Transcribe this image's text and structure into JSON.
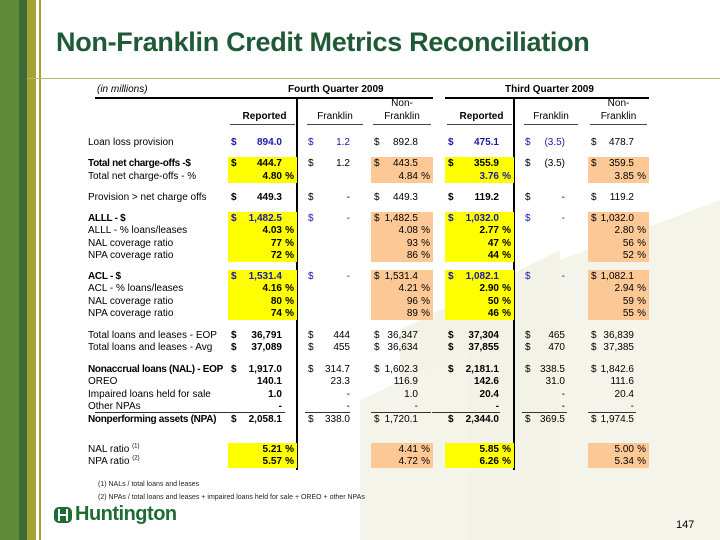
{
  "title": "Non-Franklin Credit Metrics Reconciliation",
  "units_note": "(in millions)",
  "periods": [
    "Fourth Quarter 2009",
    "Third Quarter 2009"
  ],
  "column_headers": {
    "reported": "Reported",
    "franklin": "Franklin",
    "non_top": "Non-",
    "non_bottom": "Franklin"
  },
  "colors": {
    "title": "#1f5a36",
    "reported_highlight": "#ffff00",
    "non_franklin_highlight": "#fcc896",
    "accent_blue": "#1a1aa8"
  },
  "rows": [
    {
      "label": "Loan loss provision",
      "cells": [
        [
          "$",
          "894.0",
          "",
          "b"
        ],
        [
          "$",
          "1.2",
          "",
          "b"
        ],
        [
          "$",
          "892.8",
          ""
        ],
        [
          "$",
          "475.1",
          "",
          "b"
        ],
        [
          "$",
          "(3.5)",
          "",
          "b"
        ],
        [
          "$",
          "478.7",
          ""
        ]
      ]
    },
    {
      "label": "Total net charge-offs -$",
      "bold": true,
      "hl": true,
      "cells": [
        [
          "$",
          "444.7",
          ""
        ],
        [
          "$",
          "1.2",
          ""
        ],
        [
          "$",
          "443.5",
          ""
        ],
        [
          "$",
          "355.9",
          ""
        ],
        [
          "$",
          "(3.5)",
          ""
        ],
        [
          "$",
          "359.5",
          ""
        ]
      ]
    },
    {
      "label": "Total net charge-offs - %",
      "hl": true,
      "cells": [
        [
          "",
          "4.80",
          "%"
        ],
        null,
        [
          "",
          "4.84",
          "%"
        ],
        [
          "",
          "3.76",
          "%",
          "b"
        ],
        null,
        [
          "",
          "3.85",
          "%"
        ]
      ]
    },
    {
      "label": "Provision > net charge offs",
      "cells": [
        [
          "$",
          "449.3",
          ""
        ],
        [
          "$",
          "-",
          ""
        ],
        [
          "$",
          "449.3",
          ""
        ],
        [
          "$",
          "119.2",
          ""
        ],
        [
          "$",
          "-",
          ""
        ],
        [
          "$",
          "119.2",
          ""
        ]
      ]
    },
    {
      "label": "ALLL - $",
      "bold": true,
      "hl": true,
      "cells": [
        [
          "$",
          "1,482.5",
          "",
          "b"
        ],
        [
          "$",
          "-",
          "",
          "b"
        ],
        [
          "$",
          "1,482.5",
          ""
        ],
        [
          "$",
          "1,032.0",
          "",
          "b"
        ],
        [
          "$",
          "-",
          "",
          "b"
        ],
        [
          "$",
          "1,032.0",
          ""
        ]
      ]
    },
    {
      "label": "ALLL - % loans/leases",
      "hl": true,
      "cells": [
        [
          "",
          "4.03",
          "%"
        ],
        null,
        [
          "",
          "4.08",
          "%"
        ],
        [
          "",
          "2.77",
          "%"
        ],
        null,
        [
          "",
          "2.80",
          "%"
        ]
      ]
    },
    {
      "label": "NAL coverage ratio",
      "hl": true,
      "cells": [
        [
          "",
          "77",
          "%"
        ],
        null,
        [
          "",
          "93",
          "%"
        ],
        [
          "",
          "47",
          "%"
        ],
        null,
        [
          "",
          "56",
          "%"
        ]
      ]
    },
    {
      "label": "NPA coverage ratio",
      "hl": true,
      "cells": [
        [
          "",
          "72",
          "%"
        ],
        null,
        [
          "",
          "86",
          "%"
        ],
        [
          "",
          "44",
          "%"
        ],
        null,
        [
          "",
          "52",
          "%"
        ]
      ]
    },
    {
      "label": "ACL - $",
      "bold": true,
      "hl": true,
      "cells": [
        [
          "$",
          "1,531.4",
          "",
          "b"
        ],
        [
          "$",
          "-",
          "",
          "b"
        ],
        [
          "$",
          "1,531.4",
          ""
        ],
        [
          "$",
          "1,082.1",
          "",
          "b"
        ],
        [
          "$",
          "-",
          "",
          "b"
        ],
        [
          "$",
          "1,082.1",
          ""
        ]
      ]
    },
    {
      "label": "ACL - % loans/leases",
      "hl": true,
      "cells": [
        [
          "",
          "4.16",
          "%"
        ],
        null,
        [
          "",
          "4.21",
          "%"
        ],
        [
          "",
          "2.90",
          "%"
        ],
        null,
        [
          "",
          "2.94",
          "%"
        ]
      ]
    },
    {
      "label": "NAL coverage ratio",
      "hl": true,
      "cells": [
        [
          "",
          "80",
          "%"
        ],
        null,
        [
          "",
          "96",
          "%"
        ],
        [
          "",
          "50",
          "%"
        ],
        null,
        [
          "",
          "59",
          "%"
        ]
      ]
    },
    {
      "label": "NPA coverage ratio",
      "hl": true,
      "cells": [
        [
          "",
          "74",
          "%"
        ],
        null,
        [
          "",
          "89",
          "%"
        ],
        [
          "",
          "46",
          "%"
        ],
        null,
        [
          "",
          "55",
          "%"
        ]
      ]
    },
    {
      "label": "Total loans and leases - EOP",
      "cells": [
        [
          "$",
          "36,791",
          ""
        ],
        [
          "$",
          "444",
          ""
        ],
        [
          "$",
          "36,347",
          ""
        ],
        [
          "$",
          "37,304",
          ""
        ],
        [
          "$",
          "465",
          ""
        ],
        [
          "$",
          "36,839",
          ""
        ]
      ]
    },
    {
      "label": "Total loans and leases - Avg",
      "cells": [
        [
          "$",
          "37,089",
          ""
        ],
        [
          "$",
          "455",
          ""
        ],
        [
          "$",
          "36,634",
          ""
        ],
        [
          "$",
          "37,855",
          ""
        ],
        [
          "$",
          "470",
          ""
        ],
        [
          "$",
          "37,385",
          ""
        ]
      ]
    },
    {
      "label": "Nonaccrual loans (NAL) - EOP",
      "bold": true,
      "cells": [
        [
          "$",
          "1,917.0",
          ""
        ],
        [
          "$",
          "314.7",
          ""
        ],
        [
          "$",
          "1,602.3",
          ""
        ],
        [
          "$",
          "2,181.1",
          ""
        ],
        [
          "$",
          "338.5",
          ""
        ],
        [
          "$",
          "1,842.6",
          ""
        ]
      ]
    },
    {
      "label": "OREO",
      "cells": [
        [
          "",
          "140.1",
          ""
        ],
        [
          "",
          "23.3",
          ""
        ],
        [
          "",
          "116.9",
          ""
        ],
        [
          "",
          "142.6",
          ""
        ],
        [
          "",
          "31.0",
          ""
        ],
        [
          "",
          "111.6",
          ""
        ]
      ]
    },
    {
      "label": "Impaired loans held for sale",
      "cells": [
        [
          "",
          "1.0",
          ""
        ],
        [
          "",
          "-",
          ""
        ],
        [
          "",
          "1.0",
          ""
        ],
        [
          "",
          "20.4",
          ""
        ],
        [
          "",
          "-",
          ""
        ],
        [
          "",
          "20.4",
          ""
        ]
      ]
    },
    {
      "label": "Other NPAs",
      "cells": [
        [
          "",
          "-",
          ""
        ],
        [
          "",
          "-",
          ""
        ],
        [
          "",
          "-",
          ""
        ],
        [
          "",
          "-",
          ""
        ],
        [
          "",
          "-",
          ""
        ],
        [
          "",
          "-",
          ""
        ]
      ]
    },
    {
      "label": "Nonperforming assets (NPA)",
      "bold": true,
      "cells": [
        [
          "$",
          "2,058.1",
          ""
        ],
        [
          "$",
          "338.0",
          ""
        ],
        [
          "$",
          "1,720.1",
          ""
        ],
        [
          "$",
          "2,344.0",
          ""
        ],
        [
          "$",
          "369.5",
          ""
        ],
        [
          "$",
          "1,974.5",
          ""
        ]
      ]
    },
    {
      "label": "NAL ratio",
      "sup": "(1)",
      "hl": true,
      "cells": [
        [
          "",
          "5.21",
          "%"
        ],
        null,
        [
          "",
          "4.41",
          "%"
        ],
        [
          "",
          "5.85",
          "%"
        ],
        null,
        [
          "",
          "5.00",
          "%"
        ]
      ]
    },
    {
      "label": "NPA ratio",
      "sup": "(2)",
      "hl": true,
      "cells": [
        [
          "",
          "5.57",
          "%"
        ],
        null,
        [
          "",
          "4.72",
          "%"
        ],
        [
          "",
          "6.26",
          "%"
        ],
        null,
        [
          "",
          "5.34",
          "%"
        ]
      ]
    }
  ],
  "footnotes": [
    "(1) NALs / total loans and leases",
    "(2) NPAs / total loans and leases + impaired loans held for sale + OREO + other NPAs"
  ],
  "logo_text": "Huntington",
  "page_number": "147"
}
